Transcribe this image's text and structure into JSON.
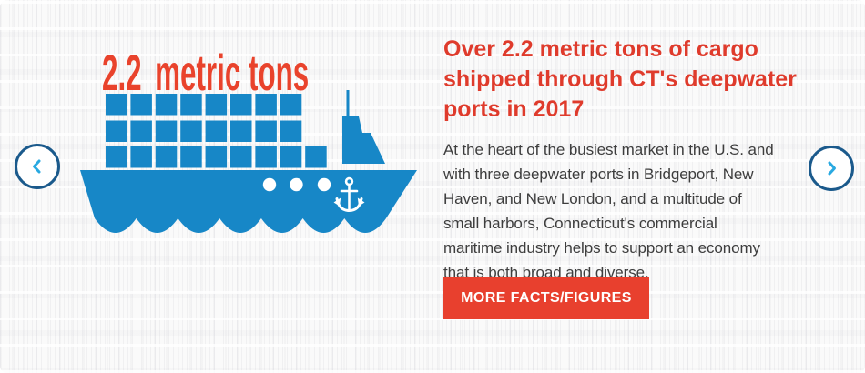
{
  "slide": {
    "stat_value": "2.2",
    "stat_unit": "metric tons",
    "heading_lines": [
      "Over 2.2 metric tons of cargo",
      "shipped through CT's deepwater",
      "ports in 2017"
    ],
    "body_lines": [
      "At the heart of the busiest market in the U.S. and",
      "with three deepwater ports in Bridgeport, New",
      "Haven, and New London, and a multitude of",
      "small harbors, Connecticut's commercial",
      "maritime industry helps to support an economy",
      "that is both broad and diverse."
    ],
    "cta_label": "MORE FACTS/FIGURES"
  },
  "carousel": {
    "prev_icon": "chevron-left",
    "next_icon": "chevron-right"
  },
  "illustration": {
    "type": "cargo-ship",
    "container_rows": [
      8,
      8,
      9
    ],
    "portholes": 3,
    "deck_icon": "anchor-icon"
  },
  "colors": {
    "ship-blue": "#1787c7",
    "stat-red": "#e9432c",
    "heading-red": "#df3b2c",
    "body-text": "#3d3d3d",
    "button-red": "#e8402e",
    "button-text": "#ffffff",
    "arrow-border": "#1b5a8c",
    "arrow-chevron": "#29a9e1",
    "background": "#fafafa"
  }
}
